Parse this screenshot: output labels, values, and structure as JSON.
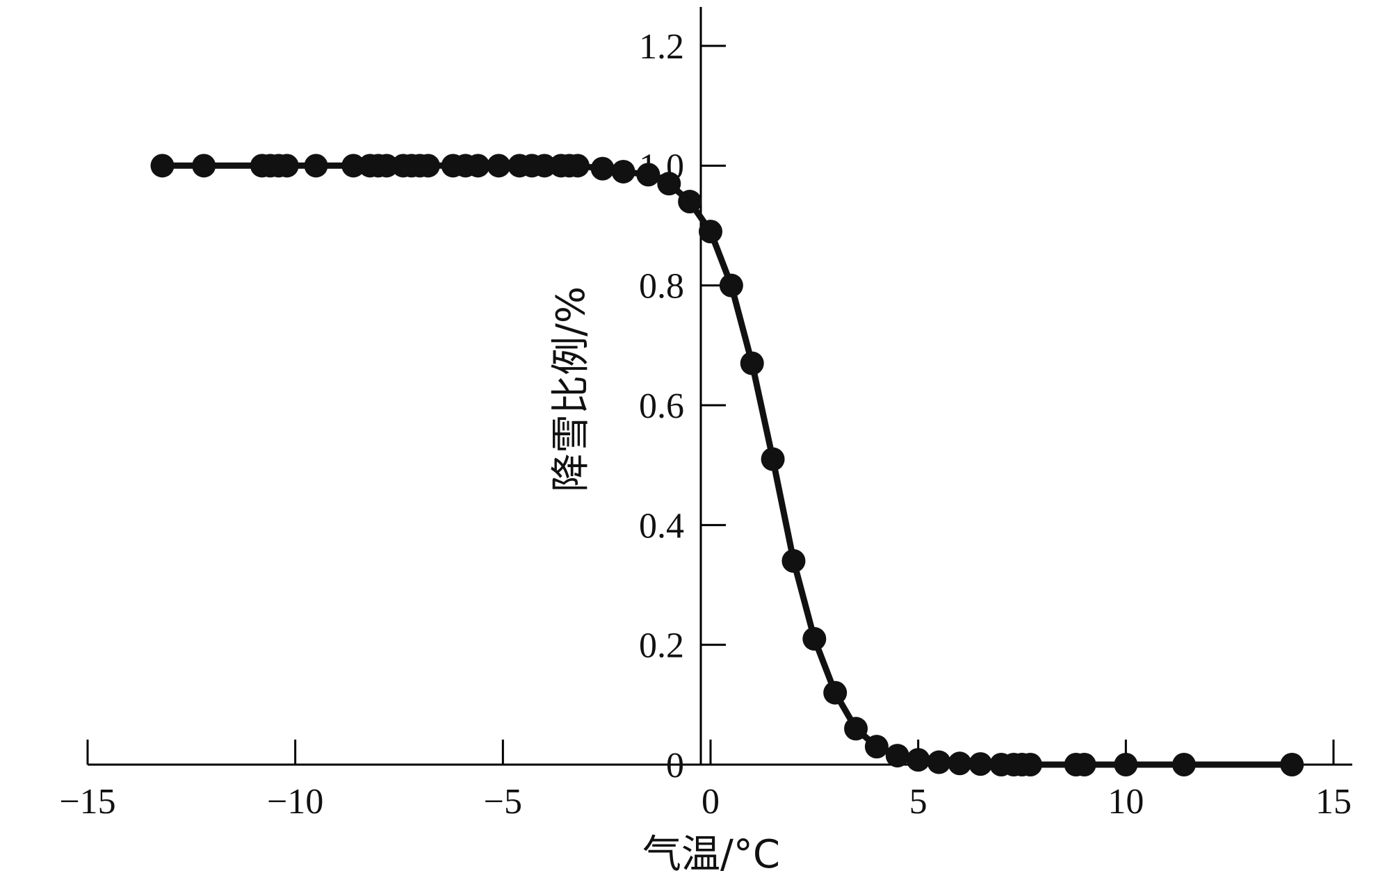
{
  "chart_data": {
    "type": "line",
    "title": "",
    "xlabel": "气温/°C",
    "ylabel": "降雪比例/%",
    "xlim": [
      -15,
      15
    ],
    "ylim": [
      0,
      1.2
    ],
    "x_ticks": [
      -15,
      -10,
      -5,
      0,
      5,
      10,
      15
    ],
    "x_tick_labels": [
      "−15",
      "−10",
      "−5",
      "0",
      "5",
      "10",
      "15"
    ],
    "y_ticks": [
      0.2,
      0.4,
      0.6,
      0.8,
      1.0,
      1.2
    ],
    "y_tick_labels": [
      "0.2",
      "0.4",
      "0.6",
      "0.8",
      "1.0",
      "1.2"
    ],
    "origin_label": "0",
    "grid": false,
    "legend": "none",
    "color": "#111111",
    "series": [
      {
        "name": "",
        "marker": "circle",
        "x": [
          -13.2,
          -12.2,
          -10.8,
          -10.6,
          -10.4,
          -10.2,
          -9.5,
          -8.6,
          -8.2,
          -8.0,
          -7.8,
          -7.4,
          -7.2,
          -7.0,
          -6.8,
          -6.2,
          -5.9,
          -5.6,
          -5.1,
          -4.6,
          -4.3,
          -4.0,
          -3.6,
          -3.4,
          -3.2,
          -2.6,
          -2.1,
          -1.5,
          -1.0,
          -0.5,
          0.0,
          0.5,
          1.0,
          1.5,
          2.0,
          2.5,
          3.0,
          3.5,
          4.0,
          4.5,
          5.0,
          5.5,
          6.0,
          6.5,
          7.0,
          7.3,
          7.5,
          7.7,
          8.8,
          9.0,
          10.0,
          11.4,
          14.0
        ],
        "y": [
          1.0,
          1.0,
          1.0,
          1.0,
          1.0,
          1.0,
          1.0,
          1.0,
          1.0,
          1.0,
          1.0,
          1.0,
          1.0,
          1.0,
          1.0,
          1.0,
          1.0,
          1.0,
          1.0,
          1.0,
          1.0,
          1.0,
          1.0,
          1.0,
          1.0,
          0.995,
          0.99,
          0.985,
          0.97,
          0.94,
          0.89,
          0.8,
          0.67,
          0.51,
          0.34,
          0.21,
          0.12,
          0.06,
          0.03,
          0.015,
          0.008,
          0.004,
          0.002,
          0.001,
          0.0,
          0.0,
          0.0,
          0.0,
          0.0,
          0.0,
          0.0,
          0.0,
          0.0
        ]
      }
    ]
  }
}
